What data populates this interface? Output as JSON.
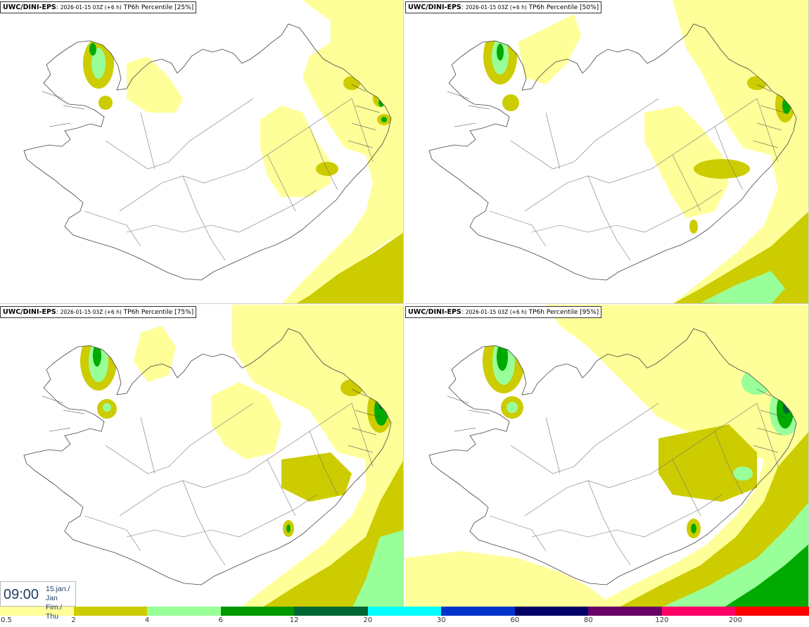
{
  "panels": [
    {
      "model": "UWC/DINI-EPS",
      "run": "2026-01-15 03Z (+6 h)",
      "field": "TP6h Percentile [25%]",
      "level": 0
    },
    {
      "model": "UWC/DINI-EPS",
      "run": "2026-01-15 03Z (+6 h)",
      "field": "TP6h Percentile [50%]",
      "level": 1
    },
    {
      "model": "UWC/DINI-EPS",
      "run": "2026-01-15 03Z (+6 h)",
      "field": "TP6h Percentile [75%]",
      "level": 2
    },
    {
      "model": "UWC/DINI-EPS",
      "run": "2026-01-15 03Z (+6 h)",
      "field": "TP6h Percentile [95%]",
      "level": 3
    }
  ],
  "valid_time": {
    "clock": "09:00",
    "date_line1": "15.jan./ Jan",
    "date_line2": "Fim./ Thu"
  },
  "legend": {
    "ticks": [
      "0.5",
      "2",
      "4",
      "6",
      "12",
      "20",
      "30",
      "60",
      "80",
      "120",
      "200"
    ],
    "colors": [
      "#ffff99",
      "#cccc00",
      "#99ff99",
      "#009900",
      "#006633",
      "#00ffff",
      "#0033cc",
      "#000066",
      "#660066",
      "#ff0066",
      "#ff0000"
    ]
  },
  "palette": {
    "light_yellow": "#ffff99",
    "olive": "#cccc00",
    "light_green": "#99ff99",
    "green": "#00aa00",
    "dark_green": "#006633",
    "coast": "#444444"
  }
}
